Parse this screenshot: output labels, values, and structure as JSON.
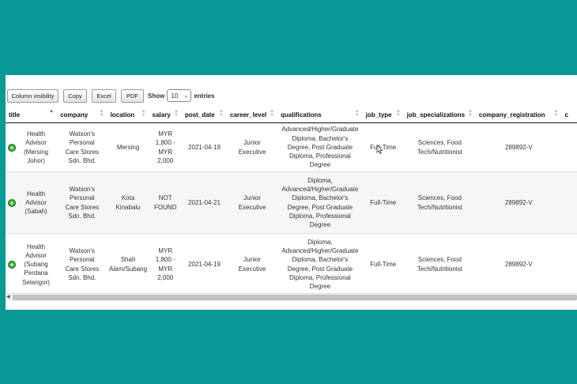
{
  "toolbar": {
    "buttons": [
      "Column visibility",
      "Copy",
      "Excel",
      "PDF"
    ],
    "show_label": "Show",
    "page_length": "10",
    "entries_label": "entries"
  },
  "table": {
    "columns": [
      "title",
      "company",
      "location",
      "salary",
      "post_date",
      "career_level",
      "qualifications",
      "job_type",
      "job_specializations",
      "company_registration",
      "c"
    ],
    "rows": [
      {
        "title": [
          "Health",
          "Advisor",
          "(Mersing",
          "Johor)"
        ],
        "company": [
          "Watson's",
          "Personal",
          "Care Stores",
          "Sdn. Bhd."
        ],
        "location": [
          "Mersing"
        ],
        "salary": [
          "MYR",
          "1,800 -",
          "MYR",
          "2,000"
        ],
        "post_date": [
          "2021-04-19"
        ],
        "career_level": [
          "Junior",
          "Executive"
        ],
        "qualifications": [
          "Advanced/Higher/Graduate",
          "Diploma, Bachelor's",
          "Degree, Post Graduate",
          "Diploma, Professional",
          "Degree"
        ],
        "job_type": [
          "Full-Time"
        ],
        "job_specializations": [
          "Sciences, Food",
          "Tech/Nutritionist"
        ],
        "company_registration": [
          "289892-V"
        ]
      },
      {
        "title": [
          "Health",
          "Advisor",
          "(Sabah)"
        ],
        "company": [
          "Watson's",
          "Personal",
          "Care Stores",
          "Sdn. Bhd."
        ],
        "location": [
          "Kota",
          "Kinabalu"
        ],
        "salary": [
          "NOT",
          "FOUND"
        ],
        "post_date": [
          "2021-04-21"
        ],
        "career_level": [
          "Junior",
          "Executive"
        ],
        "qualifications": [
          "Diploma,",
          "Advanced/Higher/Graduate",
          "Diploma, Bachelor's",
          "Degree, Post Graduate",
          "Diploma, Professional",
          "Degree"
        ],
        "job_type": [
          "Full-Time"
        ],
        "job_specializations": [
          "Sciences, Food",
          "Tech/Nutritionist"
        ],
        "company_registration": [
          "289892-V"
        ]
      },
      {
        "title": [
          "Health",
          "Advisor",
          "(Subang",
          "Perdana",
          "Selangor)"
        ],
        "company": [
          "Watson's",
          "Personal",
          "Care Stores",
          "Sdn. Bhd."
        ],
        "location": [
          "Shah",
          "Alam/Subang"
        ],
        "salary": [
          "MYR",
          "1,800 -",
          "MYR",
          "2,000"
        ],
        "post_date": [
          "2021-04-19"
        ],
        "career_level": [
          "Junior",
          "Executive"
        ],
        "qualifications": [
          "Diploma,",
          "Advanced/Higher/Graduate",
          "Diploma, Bachelor's",
          "Degree, Post Graduate",
          "Diploma, Professional",
          "Degree"
        ],
        "job_type": [
          "Full-Time"
        ],
        "job_specializations": [
          "Sciences, Food",
          "Tech/Nutritionist"
        ],
        "company_registration": [
          "289892-V"
        ]
      }
    ]
  },
  "icons": {
    "expand": "plus-circle-icon",
    "sort": "sort-arrows-icon",
    "cursor": "mouse-pointer-icon"
  },
  "colors": {
    "background": "#0a9a96",
    "expand_icon": "#31b131",
    "sort_active": "#4a5db7"
  }
}
